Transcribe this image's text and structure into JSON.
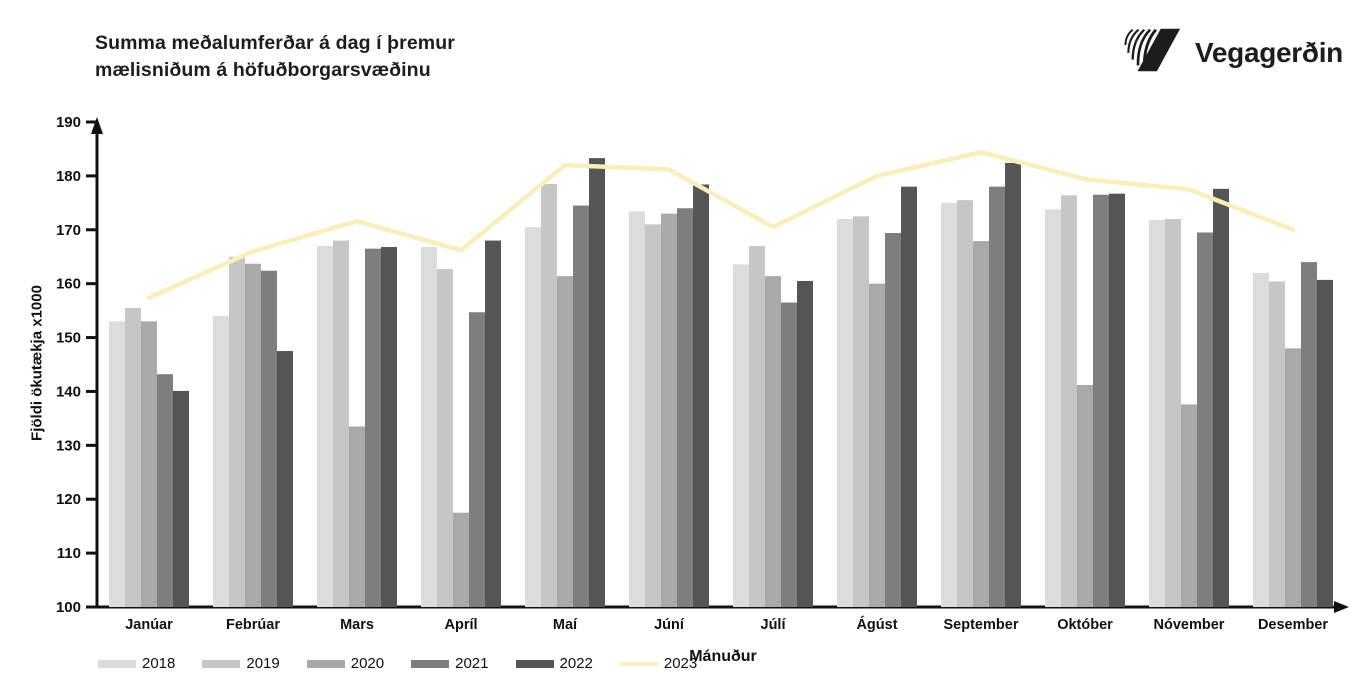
{
  "header": {
    "title_line1": "Summa meðalumferðar á dag í þremur",
    "title_line2": "mælisniðum á höfuðborgarsvæðinu",
    "logo_text": "Vegagerðin"
  },
  "chart_data": {
    "type": "bar",
    "title": "Summa meðalumferðar á dag í þremur mælisniðum á höfuðborgarsvæðinu",
    "xlabel": "Mánuður",
    "ylabel": "Fjöldi ökutækja x1000",
    "ylim": [
      100,
      190
    ],
    "ytick_step": 10,
    "grid": false,
    "legend_position": "bottom-left",
    "axis_color": "#111111",
    "categories": [
      "Janúar",
      "Febrúar",
      "Mars",
      "Apríl",
      "Maí",
      "Júní",
      "Júlí",
      "Ágúst",
      "September",
      "Október",
      "Nóvember",
      "Desember"
    ],
    "series": [
      {
        "name": "2018",
        "type": "bar",
        "color": "#dcdcdc",
        "values": [
          153.0,
          154.0,
          167.0,
          166.8,
          170.5,
          173.4,
          163.6,
          172.0,
          175.0,
          173.8,
          171.8,
          162.0
        ]
      },
      {
        "name": "2019",
        "type": "bar",
        "color": "#c6c6c6",
        "values": [
          155.5,
          165.0,
          168.0,
          162.7,
          178.5,
          171.0,
          167.0,
          172.5,
          175.5,
          176.4,
          172.0,
          160.4
        ]
      },
      {
        "name": "2020",
        "type": "bar",
        "color": "#a9a9a9",
        "values": [
          153.0,
          163.7,
          133.5,
          117.5,
          161.4,
          173.0,
          161.4,
          160.0,
          167.9,
          141.2,
          137.6,
          148.0
        ]
      },
      {
        "name": "2021",
        "type": "bar",
        "color": "#7e7e7e",
        "values": [
          143.2,
          162.4,
          166.5,
          154.7,
          174.5,
          174.0,
          156.5,
          169.4,
          178.0,
          176.5,
          169.5,
          164.0
        ]
      },
      {
        "name": "2022",
        "type": "bar",
        "color": "#555555",
        "values": [
          140.1,
          147.5,
          166.8,
          168.0,
          183.3,
          178.4,
          160.5,
          178.0,
          182.4,
          176.7,
          177.6,
          160.7
        ]
      },
      {
        "name": "2023",
        "type": "line",
        "color": "#f9eebc",
        "values": [
          157.4,
          166.0,
          171.6,
          166.2,
          182.0,
          181.2,
          170.5,
          180.0,
          184.4,
          179.4,
          177.5,
          170.0
        ]
      }
    ]
  }
}
